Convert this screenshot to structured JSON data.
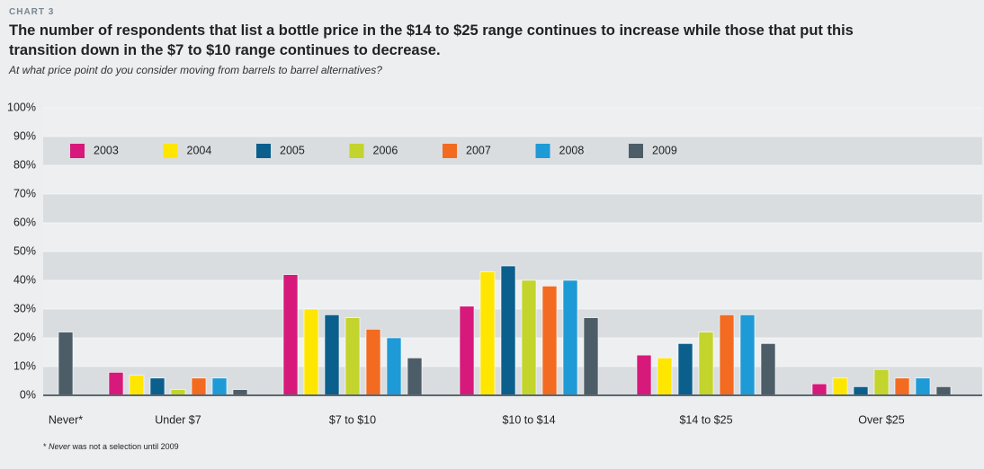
{
  "chart_data": {
    "type": "bar",
    "label": "CHART 3",
    "title": "The number of respondents that list a bottle price in the $14 to $25 range continues to increase while those that put this transition down in the $7 to $10 range continues to decrease.",
    "subtitle": "At what price point do you consider moving from barrels to barrel alternatives?",
    "footnote": [
      "* ",
      "Never",
      " was not a selection until 2009"
    ],
    "categories": [
      "Never*",
      "Under $7",
      "$7 to $10",
      "$10 to $14",
      "$14 to $25",
      "Over $25"
    ],
    "series": [
      {
        "name": "2003",
        "color": "#d6197a",
        "values": [
          null,
          8,
          42,
          31,
          14,
          4
        ]
      },
      {
        "name": "2004",
        "color": "#ffe600",
        "values": [
          null,
          7,
          30,
          43,
          13,
          6
        ]
      },
      {
        "name": "2005",
        "color": "#0b5f8c",
        "values": [
          null,
          6,
          28,
          45,
          18,
          3
        ]
      },
      {
        "name": "2006",
        "color": "#c3d42c",
        "values": [
          null,
          2,
          27,
          40,
          22,
          9
        ]
      },
      {
        "name": "2007",
        "color": "#f26b21",
        "values": [
          null,
          6,
          23,
          38,
          28,
          6
        ]
      },
      {
        "name": "2008",
        "color": "#1e9ad6",
        "values": [
          null,
          6,
          20,
          40,
          28,
          6
        ]
      },
      {
        "name": "2009",
        "color": "#4d5d68",
        "values": [
          22,
          2,
          13,
          27,
          18,
          3
        ]
      }
    ],
    "ylim": [
      0,
      100
    ],
    "yticks": [
      {
        "value": 0,
        "label": "0%"
      },
      {
        "value": 10,
        "label": "10%"
      },
      {
        "value": 20,
        "label": "20%"
      },
      {
        "value": 30,
        "label": "30%"
      },
      {
        "value": 40,
        "label": "40%"
      },
      {
        "value": 50,
        "label": "50%"
      },
      {
        "value": 60,
        "label": "60%"
      },
      {
        "value": 70,
        "label": "70%"
      },
      {
        "value": 80,
        "label": "80%"
      },
      {
        "value": 90,
        "label": "90%"
      },
      {
        "value": 100,
        "label": "100%"
      }
    ],
    "grid": true,
    "legend": "top-left"
  }
}
